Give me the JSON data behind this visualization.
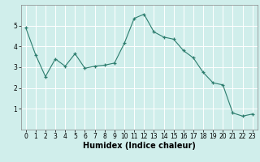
{
  "x": [
    0,
    1,
    2,
    3,
    4,
    5,
    6,
    7,
    8,
    9,
    10,
    11,
    12,
    13,
    14,
    15,
    16,
    17,
    18,
    19,
    20,
    21,
    22,
    23
  ],
  "y": [
    4.9,
    3.6,
    2.55,
    3.4,
    3.05,
    3.65,
    2.95,
    3.05,
    3.1,
    3.2,
    4.15,
    5.35,
    5.55,
    4.7,
    4.45,
    4.35,
    3.8,
    3.45,
    2.75,
    2.25,
    2.15,
    0.8,
    0.65,
    0.75
  ],
  "xlabel": "Humidex (Indice chaleur)",
  "ylim": [
    0,
    6
  ],
  "xlim": [
    -0.5,
    23.5
  ],
  "yticks": [
    1,
    2,
    3,
    4,
    5
  ],
  "xticks": [
    0,
    1,
    2,
    3,
    4,
    5,
    6,
    7,
    8,
    9,
    10,
    11,
    12,
    13,
    14,
    15,
    16,
    17,
    18,
    19,
    20,
    21,
    22,
    23
  ],
  "line_color": "#2d7d6e",
  "marker": "+",
  "bg_color": "#d0eeeb",
  "grid_color": "#ffffff",
  "tick_label_fontsize": 5.5,
  "xlabel_fontsize": 7.0,
  "xlabel_fontweight": "bold"
}
